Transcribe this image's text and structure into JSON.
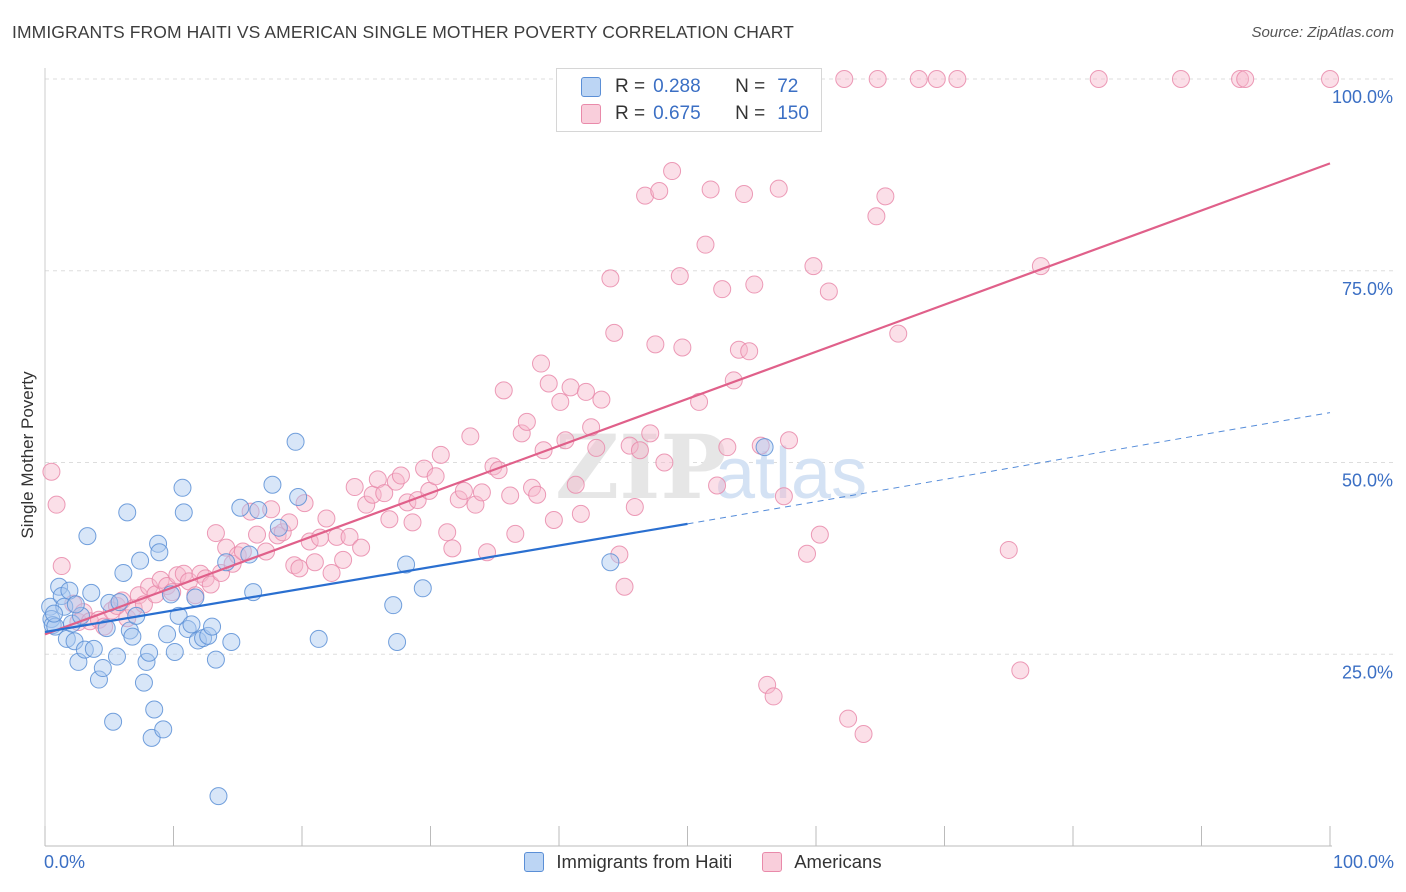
{
  "title": "IMMIGRANTS FROM HAITI VS AMERICAN SINGLE MOTHER POVERTY CORRELATION CHART",
  "source": "Source: ZipAtlas.com",
  "colors": {
    "blue_fill": "#a9c8f0",
    "blue_stroke": "#5b8fd6",
    "blue_line": "#2a6fd0",
    "pink_fill": "#f6b8cc",
    "pink_stroke": "#e98aaa",
    "pink_line": "#e0608a",
    "axis_text": "#3b6fc4",
    "grid": "#dddddd"
  },
  "legend": {
    "r_label": "R =",
    "n_label": "N =",
    "series": [
      {
        "r": "0.288",
        "n": "72"
      },
      {
        "r": "0.675",
        "n": "150"
      }
    ]
  },
  "bottom_legend": [
    "Immigrants from Haiti",
    "Americans"
  ],
  "watermark": {
    "zip": "ZIP",
    "atlas": "atlas"
  },
  "chart_data": {
    "type": "scatter",
    "title": "IMMIGRANTS FROM HAITI VS AMERICAN SINGLE MOTHER POVERTY CORRELATION CHART",
    "xlabel": "",
    "ylabel": "Single Mother Poverty",
    "xlim": [
      0,
      100
    ],
    "ylim": [
      0,
      100
    ],
    "x_tick_labels": [
      "0.0%",
      "100.0%"
    ],
    "y_ticks": [
      25,
      50,
      75,
      100
    ],
    "y_tick_labels": [
      "25.0%",
      "50.0%",
      "75.0%",
      "100.0%"
    ],
    "grid": "horizontal dashed",
    "legend_position": "top-center",
    "series": [
      {
        "name": "Immigrants from Haiti",
        "r": 0.288,
        "n": 72,
        "trend": {
          "x": [
            0,
            50
          ],
          "y": [
            27.9,
            42.0
          ],
          "dashed_to": [
            100,
            56.5
          ]
        },
        "points": [
          [
            0.4,
            31.2
          ],
          [
            0.5,
            29.6
          ],
          [
            0.6,
            28.8
          ],
          [
            0.8,
            28.6
          ],
          [
            1.1,
            33.8
          ],
          [
            1.3,
            32.6
          ],
          [
            1.5,
            31.2
          ],
          [
            1.7,
            27.0
          ],
          [
            1.9,
            33.3
          ],
          [
            2.1,
            29.0
          ],
          [
            2.3,
            26.7
          ],
          [
            2.6,
            24.0
          ],
          [
            2.8,
            30.0
          ],
          [
            3.1,
            25.6
          ],
          [
            3.3,
            40.4
          ],
          [
            3.6,
            33.0
          ],
          [
            3.8,
            25.7
          ],
          [
            4.2,
            21.7
          ],
          [
            4.5,
            23.2
          ],
          [
            4.8,
            28.4
          ],
          [
            5.0,
            31.7
          ],
          [
            5.3,
            16.2
          ],
          [
            5.6,
            24.7
          ],
          [
            5.8,
            31.8
          ],
          [
            6.1,
            35.6
          ],
          [
            6.4,
            43.5
          ],
          [
            6.6,
            28.1
          ],
          [
            6.8,
            27.3
          ],
          [
            7.1,
            30.0
          ],
          [
            7.4,
            37.2
          ],
          [
            7.7,
            21.3
          ],
          [
            7.9,
            24.0
          ],
          [
            8.1,
            25.2
          ],
          [
            8.3,
            14.1
          ],
          [
            8.5,
            17.8
          ],
          [
            8.8,
            39.4
          ],
          [
            8.9,
            38.3
          ],
          [
            9.2,
            15.2
          ],
          [
            9.5,
            27.6
          ],
          [
            9.8,
            32.8
          ],
          [
            10.1,
            25.3
          ],
          [
            10.4,
            30.0
          ],
          [
            10.7,
            46.7
          ],
          [
            10.8,
            43.5
          ],
          [
            11.1,
            28.3
          ],
          [
            11.4,
            28.9
          ],
          [
            11.7,
            32.4
          ],
          [
            11.9,
            26.8
          ],
          [
            12.3,
            27.1
          ],
          [
            12.7,
            27.4
          ],
          [
            13.0,
            28.6
          ],
          [
            13.3,
            24.3
          ],
          [
            13.5,
            6.5
          ],
          [
            14.1,
            37.0
          ],
          [
            14.5,
            26.6
          ],
          [
            15.2,
            44.1
          ],
          [
            15.9,
            38.0
          ],
          [
            16.2,
            33.1
          ],
          [
            16.6,
            43.8
          ],
          [
            17.7,
            47.1
          ],
          [
            18.2,
            41.5
          ],
          [
            19.5,
            52.7
          ],
          [
            19.7,
            45.5
          ],
          [
            21.3,
            27.0
          ],
          [
            27.1,
            31.4
          ],
          [
            27.4,
            26.6
          ],
          [
            28.1,
            36.7
          ],
          [
            29.4,
            33.6
          ],
          [
            44.0,
            37.0
          ],
          [
            56.0,
            52.0
          ],
          [
            0.7,
            30.3
          ],
          [
            2.4,
            31.5
          ]
        ]
      },
      {
        "name": "Americans",
        "r": 0.675,
        "n": 150,
        "trend": {
          "x": [
            0,
            100
          ],
          "y": [
            27.6,
            89.0
          ]
        },
        "points": [
          [
            0.5,
            48.8
          ],
          [
            0.9,
            44.5
          ],
          [
            1.3,
            36.5
          ],
          [
            2.2,
            31.6
          ],
          [
            2.6,
            29.2
          ],
          [
            3.0,
            30.5
          ],
          [
            3.5,
            29.3
          ],
          [
            4.2,
            29.5
          ],
          [
            4.6,
            28.6
          ],
          [
            5.2,
            30.7
          ],
          [
            5.6,
            31.3
          ],
          [
            6.0,
            32.0
          ],
          [
            6.4,
            29.7
          ],
          [
            6.9,
            31.0
          ],
          [
            7.3,
            32.7
          ],
          [
            7.7,
            31.5
          ],
          [
            8.1,
            33.8
          ],
          [
            8.6,
            32.8
          ],
          [
            9.0,
            34.7
          ],
          [
            9.5,
            33.9
          ],
          [
            9.9,
            33.1
          ],
          [
            10.3,
            35.3
          ],
          [
            10.8,
            35.5
          ],
          [
            11.2,
            34.5
          ],
          [
            11.7,
            32.7
          ],
          [
            12.1,
            35.5
          ],
          [
            12.5,
            34.9
          ],
          [
            12.9,
            34.1
          ],
          [
            13.3,
            40.8
          ],
          [
            13.7,
            35.6
          ],
          [
            14.1,
            38.9
          ],
          [
            14.6,
            36.8
          ],
          [
            15.0,
            37.9
          ],
          [
            15.4,
            38.4
          ],
          [
            16.0,
            43.6
          ],
          [
            16.5,
            40.6
          ],
          [
            17.2,
            38.4
          ],
          [
            17.6,
            43.9
          ],
          [
            18.1,
            40.5
          ],
          [
            18.5,
            40.9
          ],
          [
            19.0,
            42.2
          ],
          [
            19.4,
            36.6
          ],
          [
            19.8,
            36.2
          ],
          [
            20.2,
            44.7
          ],
          [
            20.6,
            39.7
          ],
          [
            21.0,
            37.0
          ],
          [
            21.4,
            40.2
          ],
          [
            21.9,
            42.7
          ],
          [
            22.3,
            35.6
          ],
          [
            22.7,
            40.3
          ],
          [
            23.2,
            37.3
          ],
          [
            23.7,
            40.3
          ],
          [
            24.1,
            46.8
          ],
          [
            24.6,
            38.9
          ],
          [
            25.0,
            44.5
          ],
          [
            25.5,
            45.8
          ],
          [
            25.9,
            47.8
          ],
          [
            26.4,
            46.0
          ],
          [
            26.8,
            42.6
          ],
          [
            27.3,
            47.5
          ],
          [
            27.7,
            48.3
          ],
          [
            28.2,
            44.8
          ],
          [
            28.6,
            42.2
          ],
          [
            29.0,
            45.1
          ],
          [
            29.5,
            49.2
          ],
          [
            29.9,
            46.3
          ],
          [
            30.4,
            48.2
          ],
          [
            30.8,
            51.0
          ],
          [
            31.3,
            40.9
          ],
          [
            31.7,
            38.8
          ],
          [
            32.2,
            45.2
          ],
          [
            32.6,
            46.3
          ],
          [
            33.1,
            53.4
          ],
          [
            33.5,
            44.5
          ],
          [
            34.0,
            46.1
          ],
          [
            34.4,
            38.3
          ],
          [
            34.9,
            49.5
          ],
          [
            35.3,
            49.0
          ],
          [
            35.7,
            59.4
          ],
          [
            36.2,
            45.7
          ],
          [
            36.6,
            40.7
          ],
          [
            37.1,
            53.8
          ],
          [
            37.5,
            55.3
          ],
          [
            37.9,
            46.7
          ],
          [
            38.3,
            45.8
          ],
          [
            38.8,
            51.6
          ],
          [
            39.2,
            60.3
          ],
          [
            39.6,
            42.5
          ],
          [
            40.1,
            57.9
          ],
          [
            40.5,
            52.9
          ],
          [
            40.9,
            59.8
          ],
          [
            41.3,
            47.1
          ],
          [
            41.7,
            43.3
          ],
          [
            42.1,
            59.2
          ],
          [
            42.5,
            54.6
          ],
          [
            42.9,
            51.9
          ],
          [
            43.3,
            58.2
          ],
          [
            43.7,
            100.0
          ],
          [
            44.0,
            74.0
          ],
          [
            44.3,
            66.9
          ],
          [
            44.7,
            38.0
          ],
          [
            45.1,
            33.8
          ],
          [
            45.5,
            52.2
          ],
          [
            45.9,
            44.2
          ],
          [
            46.3,
            51.6
          ],
          [
            46.7,
            84.8
          ],
          [
            47.1,
            53.8
          ],
          [
            47.5,
            65.4
          ],
          [
            47.8,
            85.4
          ],
          [
            48.2,
            50.0
          ],
          [
            48.8,
            88.0
          ],
          [
            49.4,
            74.3
          ],
          [
            49.9,
            100.0
          ],
          [
            50.3,
            100.0
          ],
          [
            50.9,
            57.9
          ],
          [
            51.4,
            78.4
          ],
          [
            51.8,
            85.6
          ],
          [
            52.3,
            47.0
          ],
          [
            52.7,
            72.6
          ],
          [
            53.1,
            52.0
          ],
          [
            53.6,
            60.7
          ],
          [
            54.0,
            64.7
          ],
          [
            54.4,
            85.0
          ],
          [
            54.8,
            64.5
          ],
          [
            55.2,
            73.2
          ],
          [
            55.7,
            52.2
          ],
          [
            56.2,
            21.0
          ],
          [
            56.7,
            19.5
          ],
          [
            57.1,
            85.7
          ],
          [
            57.5,
            45.6
          ],
          [
            57.9,
            52.9
          ],
          [
            58.3,
            100.0
          ],
          [
            58.8,
            100.0
          ],
          [
            59.3,
            38.1
          ],
          [
            59.8,
            75.6
          ],
          [
            60.3,
            40.6
          ],
          [
            61.0,
            72.3
          ],
          [
            62.5,
            16.6
          ],
          [
            63.7,
            14.6
          ],
          [
            64.7,
            82.1
          ],
          [
            65.4,
            84.7
          ],
          [
            66.4,
            66.8
          ],
          [
            68.0,
            100.0
          ],
          [
            69.4,
            100.0
          ],
          [
            71.0,
            100.0
          ],
          [
            75.0,
            38.6
          ],
          [
            75.9,
            22.9
          ],
          [
            77.5,
            75.6
          ],
          [
            82.0,
            100.0
          ],
          [
            88.4,
            100.0
          ],
          [
            93.0,
            100.0
          ],
          [
            93.4,
            100.0
          ],
          [
            100.0,
            100.0
          ],
          [
            64.8,
            100.0
          ],
          [
            62.2,
            100.0
          ],
          [
            57.7,
            100.0
          ],
          [
            49.6,
            65.0
          ],
          [
            38.6,
            62.9
          ]
        ]
      }
    ]
  }
}
